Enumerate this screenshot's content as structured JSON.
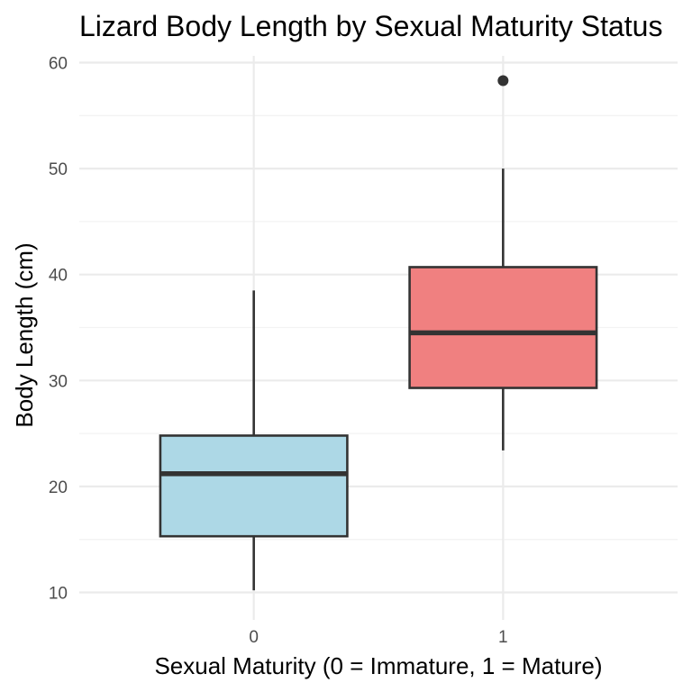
{
  "chart_data": {
    "type": "box",
    "title": "Lizard Body Length by Sexual Maturity Status",
    "xlabel": "Sexual Maturity (0 = Immature, 1 = Mature)",
    "ylabel": "Body Length (cm)",
    "ylim": [
      8,
      61
    ],
    "yticks": [
      10,
      20,
      30,
      40,
      50,
      60
    ],
    "grid": true,
    "legend": "none",
    "categories": [
      "0",
      "1"
    ],
    "boxes": [
      {
        "category": "0",
        "min": 10.2,
        "q1": 15.3,
        "median": 21.2,
        "q3": 24.8,
        "max": 38.5,
        "outliers": [],
        "fill": "#add8e6"
      },
      {
        "category": "1",
        "min": 23.4,
        "q1": 29.3,
        "median": 34.5,
        "q3": 40.7,
        "max": 50.0,
        "outliers": [
          58.3
        ],
        "fill": "#f08080"
      }
    ]
  }
}
